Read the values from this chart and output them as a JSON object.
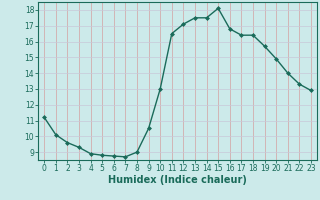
{
  "x": [
    0,
    1,
    2,
    3,
    4,
    5,
    6,
    7,
    8,
    9,
    10,
    11,
    12,
    13,
    14,
    15,
    16,
    17,
    18,
    19,
    20,
    21,
    22,
    23
  ],
  "y": [
    11.2,
    10.1,
    9.6,
    9.3,
    8.9,
    8.8,
    8.75,
    8.7,
    9.0,
    10.5,
    13.0,
    16.5,
    17.1,
    17.5,
    17.5,
    18.1,
    16.8,
    16.4,
    16.4,
    15.7,
    14.9,
    14.0,
    13.3,
    12.9
  ],
  "line_color": "#1a6b5a",
  "marker": "D",
  "markersize": 2.0,
  "linewidth": 1.0,
  "xlabel": "Humidex (Indice chaleur)",
  "xlim": [
    -0.5,
    23.5
  ],
  "ylim": [
    8.5,
    18.5
  ],
  "yticks": [
    9,
    10,
    11,
    12,
    13,
    14,
    15,
    16,
    17,
    18
  ],
  "xticks": [
    0,
    1,
    2,
    3,
    4,
    5,
    6,
    7,
    8,
    9,
    10,
    11,
    12,
    13,
    14,
    15,
    16,
    17,
    18,
    19,
    20,
    21,
    22,
    23
  ],
  "bg_color": "#cceaea",
  "grid_color_v": "#d4a0a0",
  "grid_color_h": "#c8c8d8",
  "tick_color": "#1a6b5a",
  "label_color": "#1a6b5a",
  "tick_fontsize": 5.5,
  "xlabel_fontsize": 7.0
}
